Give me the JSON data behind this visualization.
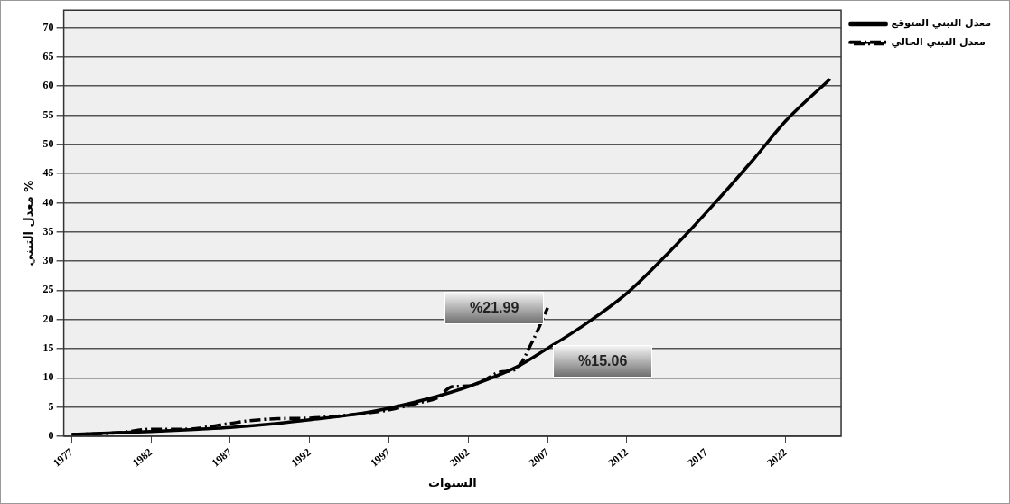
{
  "chart_data": {
    "type": "line",
    "xlabel": "السنوات",
    "ylabel": "معدل التبني %",
    "xlim": [
      1976.5,
      2025.5
    ],
    "xticks": [
      1977,
      1982,
      1987,
      1992,
      1997,
      2002,
      2007,
      2012,
      2017,
      2022
    ],
    "ylim": [
      0,
      73
    ],
    "yticks": [
      0,
      5,
      10,
      15,
      20,
      25,
      30,
      35,
      40,
      45,
      50,
      55,
      60,
      65,
      70
    ],
    "grid": "y",
    "legend": "top right",
    "marker": "none",
    "series": [
      {
        "name": "معدل التبني المتوقع",
        "color": "#000000",
        "line_style": "solid",
        "x": [
          1977,
          1980,
          1982,
          1985,
          1987,
          1990,
          1992,
          1995,
          1997,
          2000,
          2002,
          2005,
          2007,
          2009,
          2012,
          2015,
          2017,
          2020,
          2022,
          2024.8
        ],
        "values": [
          0.3,
          0.6,
          0.8,
          1.2,
          1.5,
          2.2,
          2.8,
          3.8,
          4.8,
          6.8,
          8.5,
          11.8,
          15.06,
          18.5,
          24.5,
          32.5,
          38.3,
          47.5,
          54,
          61.2
        ]
      },
      {
        "name": "معدل التبني الحالي",
        "color": "#000000",
        "line_style": "dashed",
        "x": [
          1977,
          1980,
          1982,
          1984,
          1987,
          1988,
          1990,
          1992,
          1995,
          1997,
          1999,
          2000,
          2001,
          2002,
          2003,
          2004,
          2005,
          2006,
          2007
        ],
        "values": [
          0.3,
          0.6,
          1.2,
          1.2,
          2.2,
          2.6,
          3,
          3.1,
          3.8,
          4.5,
          5.8,
          6.5,
          8.5,
          8.6,
          9.6,
          11,
          11.5,
          16,
          21.99
        ]
      }
    ],
    "annotations": [
      {
        "text": "%21.99",
        "x": 2007,
        "y": 21.99
      },
      {
        "text": "%15.06",
        "x": 2007,
        "y": 15.06
      }
    ]
  }
}
